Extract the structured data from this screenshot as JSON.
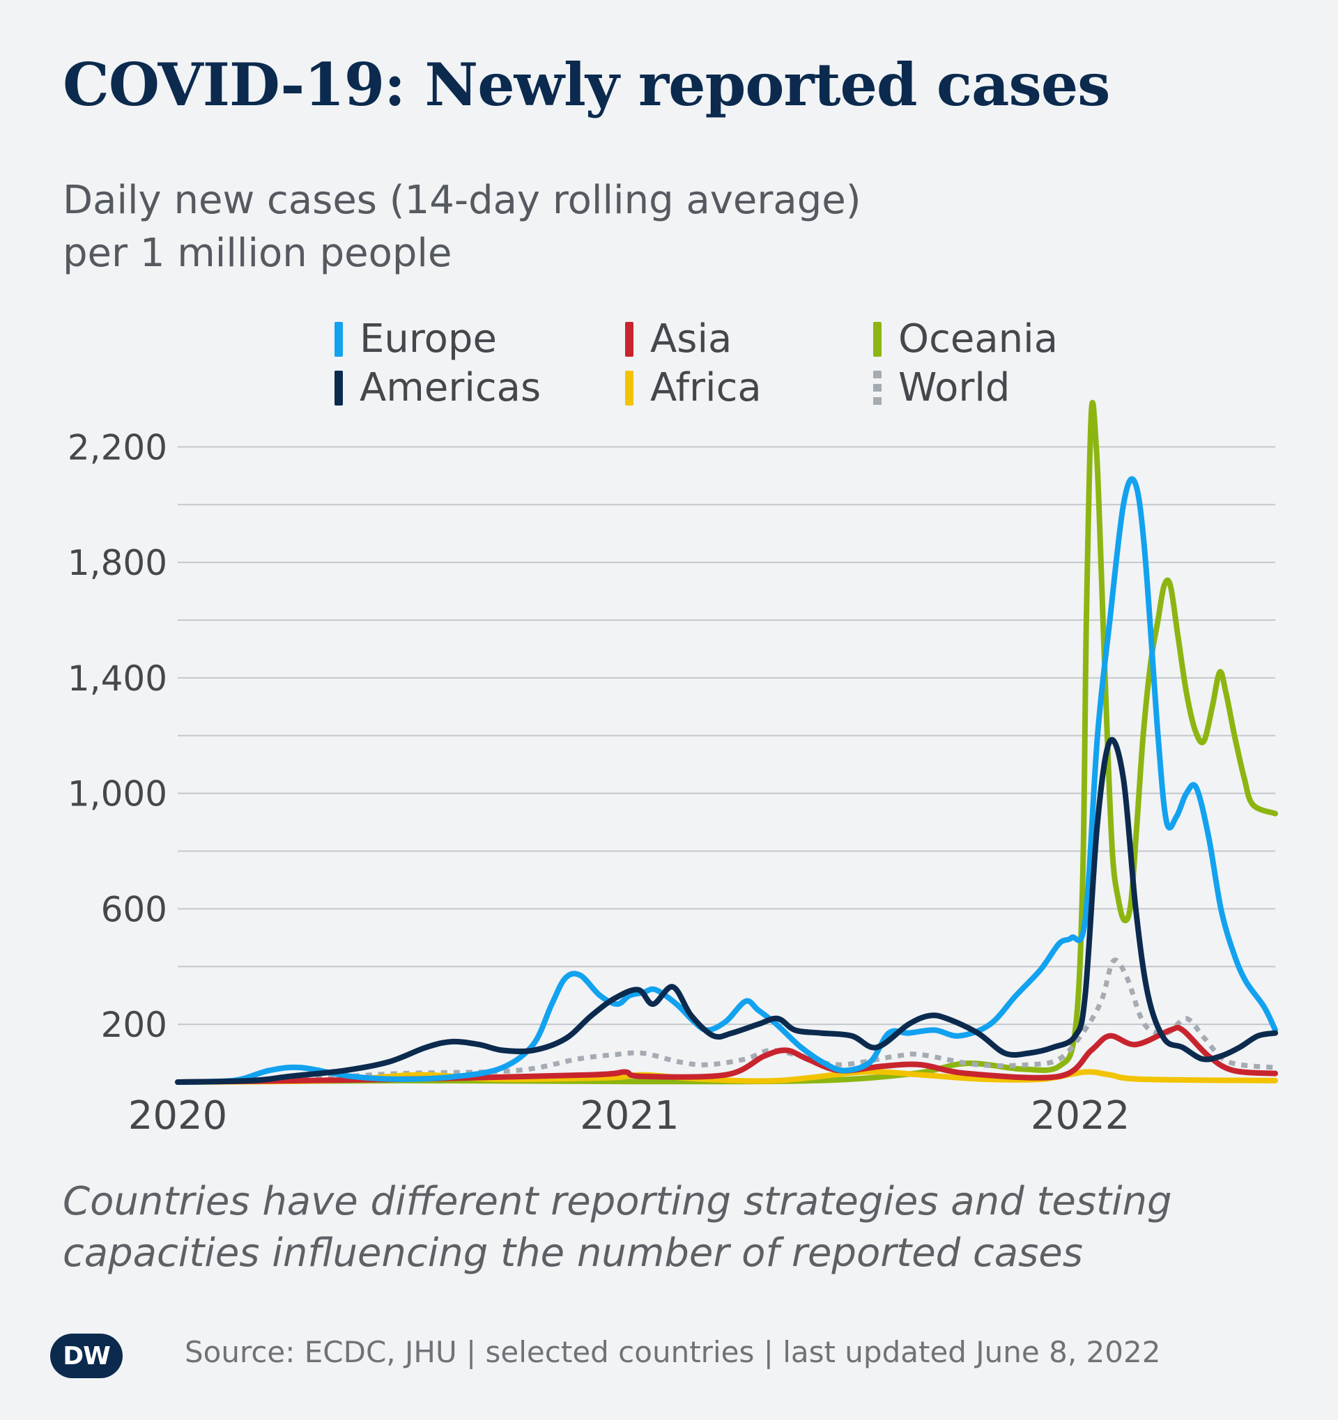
{
  "header": {
    "title": "COVID-19: Newly reported cases",
    "subtitle_line1": "Daily new cases (14-day rolling average)",
    "subtitle_line2": "per 1 million people"
  },
  "legend": [
    {
      "name": "Europe",
      "color": "#12a2ef",
      "style": "solid"
    },
    {
      "name": "Asia",
      "color": "#c8242e",
      "style": "solid"
    },
    {
      "name": "Oceania",
      "color": "#8db511",
      "style": "solid"
    },
    {
      "name": "Americas",
      "color": "#0b2a4e",
      "style": "solid"
    },
    {
      "name": "Africa",
      "color": "#f2c300",
      "style": "solid"
    },
    {
      "name": "World",
      "color": "#a4abb2",
      "style": "dotted"
    }
  ],
  "footnote": {
    "line1": "Countries have different reporting strategies and testing",
    "line2": "capacities influencing the number of reported cases"
  },
  "source": "Source: ECDC, JHU | selected countries | last updated June 8, 2022",
  "logo_text": "DW",
  "chart_data": {
    "type": "line",
    "ylim": [
      0,
      2300
    ],
    "y_ticks": [
      200,
      600,
      1000,
      1400,
      1800,
      2200
    ],
    "y_tick_labels": [
      "200",
      "600",
      "1,000",
      "1,400",
      "1,800",
      "2,200"
    ],
    "grid": true,
    "x_tick_labels": [
      {
        "year": 2020,
        "label": "2020"
      },
      {
        "year": 2021,
        "label": "2021"
      },
      {
        "year": 2022,
        "label": "2022"
      }
    ],
    "x_range": [
      "2020-01-01",
      "2022-06-08"
    ],
    "legend_position": "top",
    "series": [
      {
        "name": "Oceania",
        "color": "#8db511",
        "style": "solid",
        "points": [
          [
            "2020-01-01",
            0
          ],
          [
            "2020-07-01",
            5
          ],
          [
            "2021-01-01",
            2
          ],
          [
            "2021-06-01",
            5
          ],
          [
            "2021-08-20",
            30
          ],
          [
            "2021-10-01",
            65
          ],
          [
            "2021-11-15",
            45
          ],
          [
            "2021-12-15",
            55
          ],
          [
            "2021-12-28",
            180
          ],
          [
            "2022-01-03",
            700
          ],
          [
            "2022-01-06",
            1600
          ],
          [
            "2022-01-10",
            2320
          ],
          [
            "2022-01-14",
            2200
          ],
          [
            "2022-01-17",
            1900
          ],
          [
            "2022-01-22",
            1300
          ],
          [
            "2022-01-27",
            800
          ],
          [
            "2022-02-01",
            630
          ],
          [
            "2022-02-06",
            560
          ],
          [
            "2022-02-11",
            620
          ],
          [
            "2022-02-16",
            900
          ],
          [
            "2022-02-21",
            1200
          ],
          [
            "2022-02-27",
            1450
          ],
          [
            "2022-03-05",
            1600
          ],
          [
            "2022-03-10",
            1720
          ],
          [
            "2022-03-15",
            1720
          ],
          [
            "2022-03-21",
            1550
          ],
          [
            "2022-03-28",
            1350
          ],
          [
            "2022-04-04",
            1220
          ],
          [
            "2022-04-11",
            1180
          ],
          [
            "2022-04-18",
            1300
          ],
          [
            "2022-04-24",
            1420
          ],
          [
            "2022-04-29",
            1350
          ],
          [
            "2022-05-06",
            1200
          ],
          [
            "2022-05-14",
            1050
          ],
          [
            "2022-05-21",
            960
          ],
          [
            "2022-06-08",
            930
          ]
        ]
      },
      {
        "name": "World",
        "color": "#a4abb2",
        "style": "dotted",
        "points": [
          [
            "2020-01-01",
            0
          ],
          [
            "2020-04-01",
            10
          ],
          [
            "2020-07-01",
            30
          ],
          [
            "2020-10-01",
            40
          ],
          [
            "2020-11-20",
            80
          ],
          [
            "2020-12-20",
            95
          ],
          [
            "2021-01-12",
            100
          ],
          [
            "2021-02-10",
            70
          ],
          [
            "2021-03-05",
            60
          ],
          [
            "2021-04-05",
            80
          ],
          [
            "2021-04-25",
            110
          ],
          [
            "2021-05-20",
            90
          ],
          [
            "2021-06-20",
            60
          ],
          [
            "2021-08-05",
            90
          ],
          [
            "2021-08-25",
            95
          ],
          [
            "2021-10-10",
            60
          ],
          [
            "2021-11-20",
            60
          ],
          [
            "2021-12-15",
            80
          ],
          [
            "2022-01-03",
            170
          ],
          [
            "2022-01-18",
            280
          ],
          [
            "2022-01-28",
            420
          ],
          [
            "2022-02-08",
            360
          ],
          [
            "2022-02-22",
            200
          ],
          [
            "2022-03-12",
            170
          ],
          [
            "2022-03-28",
            220
          ],
          [
            "2022-04-12",
            150
          ],
          [
            "2022-05-01",
            70
          ],
          [
            "2022-06-08",
            50
          ]
        ]
      },
      {
        "name": "Africa",
        "color": "#f2c300",
        "style": "solid",
        "points": [
          [
            "2020-01-01",
            0
          ],
          [
            "2020-05-01",
            5
          ],
          [
            "2020-07-15",
            25
          ],
          [
            "2020-09-15",
            10
          ],
          [
            "2020-12-15",
            15
          ],
          [
            "2021-01-12",
            25
          ],
          [
            "2021-03-01",
            10
          ],
          [
            "2021-05-01",
            5
          ],
          [
            "2021-07-10",
            35
          ],
          [
            "2021-08-25",
            25
          ],
          [
            "2021-10-15",
            10
          ],
          [
            "2021-12-01",
            10
          ],
          [
            "2022-01-05",
            35
          ],
          [
            "2022-01-25",
            25
          ],
          [
            "2022-02-20",
            10
          ],
          [
            "2022-06-08",
            5
          ]
        ]
      },
      {
        "name": "Asia",
        "color": "#c8242e",
        "style": "solid",
        "points": [
          [
            "2020-01-01",
            0
          ],
          [
            "2020-07-01",
            10
          ],
          [
            "2020-12-01",
            25
          ],
          [
            "2020-12-28",
            35
          ],
          [
            "2021-01-10",
            20
          ],
          [
            "2021-03-20",
            25
          ],
          [
            "2021-04-20",
            90
          ],
          [
            "2021-05-08",
            110
          ],
          [
            "2021-05-25",
            80
          ],
          [
            "2021-06-20",
            40
          ],
          [
            "2021-07-25",
            55
          ],
          [
            "2021-08-25",
            60
          ],
          [
            "2021-10-01",
            30
          ],
          [
            "2021-12-15",
            20
          ],
          [
            "2022-01-10",
            110
          ],
          [
            "2022-01-25",
            160
          ],
          [
            "2022-02-15",
            130
          ],
          [
            "2022-03-15",
            180
          ],
          [
            "2022-03-25",
            180
          ],
          [
            "2022-04-15",
            90
          ],
          [
            "2022-05-05",
            40
          ],
          [
            "2022-06-08",
            30
          ]
        ]
      },
      {
        "name": "Europe",
        "color": "#12a2ef",
        "style": "solid",
        "points": [
          [
            "2020-01-01",
            0
          ],
          [
            "2020-02-15",
            5
          ],
          [
            "2020-03-15",
            40
          ],
          [
            "2020-04-10",
            50
          ],
          [
            "2020-05-20",
            20
          ],
          [
            "2020-07-01",
            10
          ],
          [
            "2020-08-15",
            20
          ],
          [
            "2020-09-20",
            50
          ],
          [
            "2020-10-15",
            130
          ],
          [
            "2020-10-30",
            270
          ],
          [
            "2020-11-10",
            360
          ],
          [
            "2020-11-22",
            370
          ],
          [
            "2020-12-08",
            300
          ],
          [
            "2020-12-22",
            270
          ],
          [
            "2021-01-01",
            300
          ],
          [
            "2021-01-12",
            310
          ],
          [
            "2021-01-22",
            320
          ],
          [
            "2021-02-08",
            270
          ],
          [
            "2021-02-22",
            210
          ],
          [
            "2021-03-05",
            180
          ],
          [
            "2021-03-20",
            210
          ],
          [
            "2021-04-05",
            280
          ],
          [
            "2021-04-15",
            250
          ],
          [
            "2021-04-30",
            200
          ],
          [
            "2021-05-20",
            120
          ],
          [
            "2021-06-10",
            60
          ],
          [
            "2021-06-25",
            40
          ],
          [
            "2021-07-15",
            70
          ],
          [
            "2021-07-30",
            170
          ],
          [
            "2021-08-15",
            170
          ],
          [
            "2021-09-05",
            180
          ],
          [
            "2021-09-25",
            160
          ],
          [
            "2021-10-20",
            200
          ],
          [
            "2021-11-10",
            300
          ],
          [
            "2021-11-30",
            390
          ],
          [
            "2021-12-15",
            480
          ],
          [
            "2021-12-25",
            500
          ],
          [
            "2022-01-05",
            560
          ],
          [
            "2022-01-15",
            1200
          ],
          [
            "2022-01-25",
            1600
          ],
          [
            "2022-02-05",
            2000
          ],
          [
            "2022-02-14",
            2080
          ],
          [
            "2022-02-22",
            1850
          ],
          [
            "2022-03-05",
            1200
          ],
          [
            "2022-03-12",
            900
          ],
          [
            "2022-03-20",
            920
          ],
          [
            "2022-03-28",
            1000
          ],
          [
            "2022-04-05",
            1020
          ],
          [
            "2022-04-15",
            850
          ],
          [
            "2022-04-25",
            600
          ],
          [
            "2022-05-05",
            450
          ],
          [
            "2022-05-15",
            350
          ],
          [
            "2022-05-30",
            260
          ],
          [
            "2022-06-08",
            180
          ]
        ]
      },
      {
        "name": "Americas",
        "color": "#0b2a4e",
        "style": "solid",
        "points": [
          [
            "2020-01-01",
            0
          ],
          [
            "2020-03-01",
            5
          ],
          [
            "2020-04-01",
            20
          ],
          [
            "2020-05-15",
            40
          ],
          [
            "2020-06-20",
            70
          ],
          [
            "2020-07-20",
            120
          ],
          [
            "2020-08-10",
            140
          ],
          [
            "2020-09-01",
            130
          ],
          [
            "2020-09-20",
            110
          ],
          [
            "2020-10-15",
            110
          ],
          [
            "2020-11-10",
            150
          ],
          [
            "2020-12-01",
            230
          ],
          [
            "2020-12-20",
            290
          ],
          [
            "2021-01-08",
            320
          ],
          [
            "2021-01-20",
            270
          ],
          [
            "2021-02-05",
            330
          ],
          [
            "2021-02-20",
            230
          ],
          [
            "2021-03-10",
            160
          ],
          [
            "2021-03-25",
            170
          ],
          [
            "2021-04-15",
            200
          ],
          [
            "2021-05-01",
            220
          ],
          [
            "2021-05-15",
            180
          ],
          [
            "2021-06-05",
            170
          ],
          [
            "2021-06-30",
            160
          ],
          [
            "2021-07-20",
            120
          ],
          [
            "2021-08-15",
            200
          ],
          [
            "2021-09-01",
            230
          ],
          [
            "2021-09-15",
            220
          ],
          [
            "2021-10-10",
            170
          ],
          [
            "2021-11-01",
            100
          ],
          [
            "2021-11-20",
            100
          ],
          [
            "2021-12-10",
            120
          ],
          [
            "2021-12-28",
            160
          ],
          [
            "2022-01-05",
            300
          ],
          [
            "2022-01-15",
            900
          ],
          [
            "2022-01-25",
            1180
          ],
          [
            "2022-02-05",
            1050
          ],
          [
            "2022-02-15",
            600
          ],
          [
            "2022-02-25",
            300
          ],
          [
            "2022-03-10",
            150
          ],
          [
            "2022-03-25",
            120
          ],
          [
            "2022-04-10",
            80
          ],
          [
            "2022-04-25",
            90
          ],
          [
            "2022-05-10",
            120
          ],
          [
            "2022-05-25",
            160
          ],
          [
            "2022-06-08",
            170
          ]
        ]
      }
    ]
  }
}
